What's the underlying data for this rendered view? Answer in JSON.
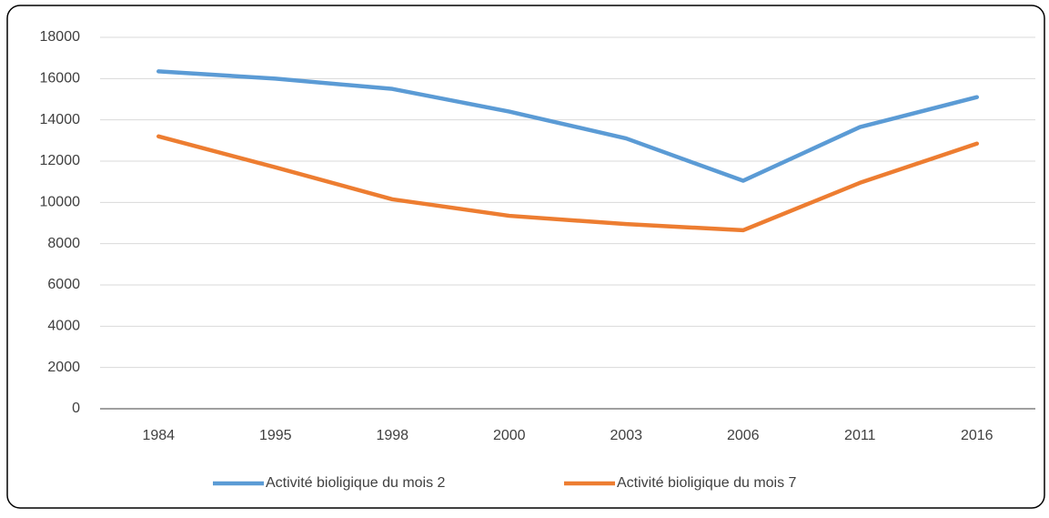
{
  "chart_data": {
    "type": "line",
    "categories": [
      "1984",
      "1995",
      "1998",
      "2000",
      "2003",
      "2006",
      "2011",
      "2016"
    ],
    "series": [
      {
        "name": "Activité bioligique du mois 2",
        "color": "#5b9bd5",
        "values": [
          16350,
          16000,
          15500,
          14400,
          13100,
          11050,
          13650,
          15100
        ]
      },
      {
        "name": "Activité bioligique du mois 7",
        "color": "#ed7d31",
        "values": [
          13200,
          11700,
          10150,
          9350,
          8950,
          8650,
          10950,
          12850
        ]
      }
    ],
    "ylim": [
      0,
      18000
    ],
    "yticks": [
      0,
      2000,
      4000,
      6000,
      8000,
      10000,
      12000,
      14000,
      16000,
      18000
    ],
    "grid": true,
    "legend": "bottom"
  }
}
